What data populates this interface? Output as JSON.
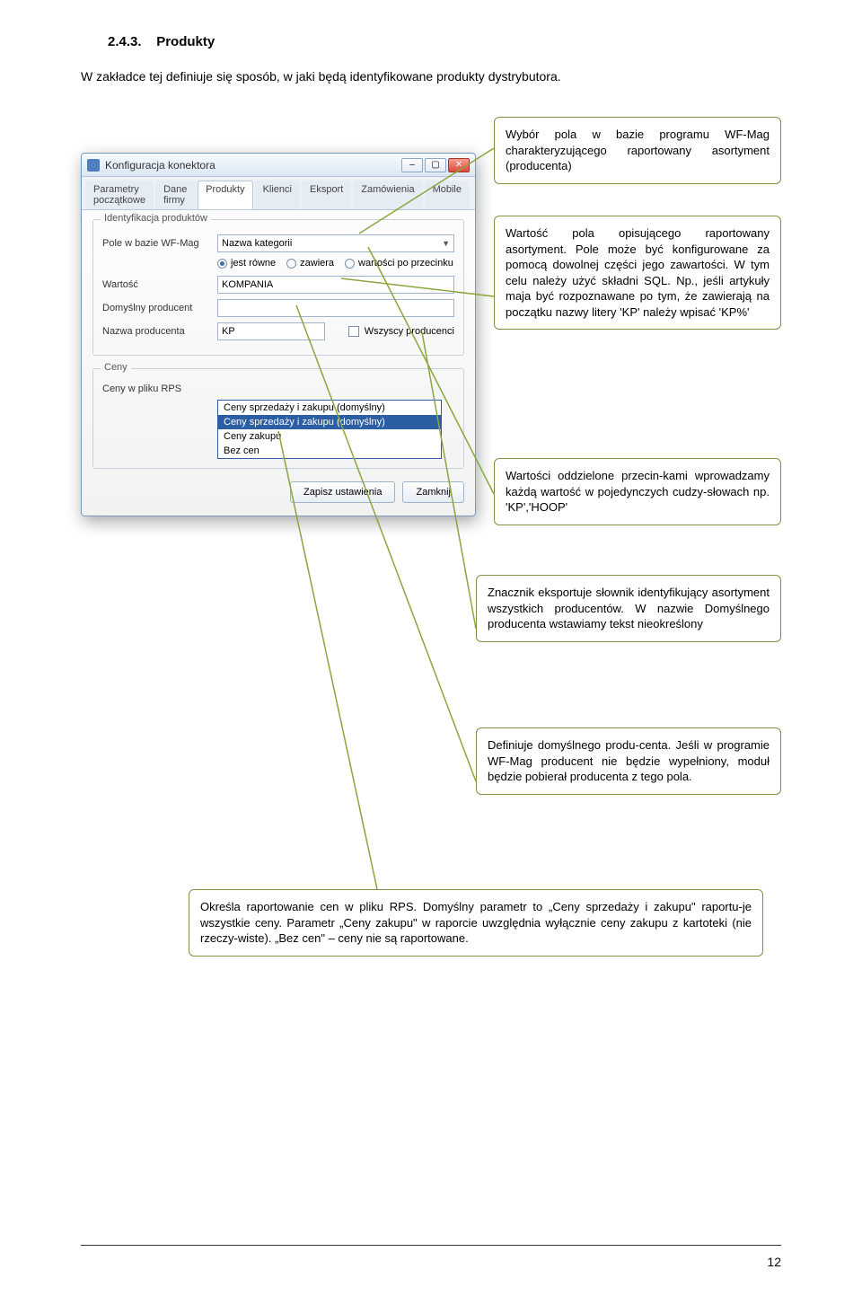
{
  "colors": {
    "callout_border": "#7c9340",
    "line": "#8aa63c",
    "dialog_border": "#7a9ac0",
    "selection_bg": "#2b5ea3"
  },
  "doc": {
    "section_number": "2.4.3.",
    "section_title": "Produkty",
    "intro": "W zakładce tej definiuje się sposób, w jaki będą identyfikowane produkty dystrybutora.",
    "page_number": "12"
  },
  "dialog": {
    "title": "Konfiguracja konektora",
    "tabs": [
      "Parametry początkowe",
      "Dane firmy",
      "Produkty",
      "Klienci",
      "Eksport",
      "Zamówienia",
      "Mobile"
    ],
    "active_tab_index": 2,
    "group_identyfikacja": {
      "legend": "Identyfikacja produktów",
      "pole_label": "Pole w bazie WF-Mag",
      "pole_value": "Nazwa kategorii",
      "radio_options": [
        "jest równe",
        "zawiera",
        "wartości po przecinku"
      ],
      "radio_selected_index": 0,
      "wartosc_label": "Wartość",
      "wartosc_value": "KOMPANIA",
      "domyslny_label": "Domyślny producent",
      "domyslny_value": "",
      "nazwa_label": "Nazwa producenta",
      "nazwa_value": "KP",
      "wszyscy_label": "Wszyscy producenci"
    },
    "group_ceny": {
      "legend": "Ceny",
      "ceny_label": "Ceny w pliku RPS",
      "options": [
        "Ceny sprzedaży i zakupu (domyślny)",
        "Ceny sprzedaży i zakupu (domyślny)",
        "Ceny zakupu",
        "Bez cen"
      ],
      "selected_index": 1
    },
    "btn_save": "Zapisz ustawienia",
    "btn_close": "Zamknij"
  },
  "callouts": {
    "c1": "Wybór pola w bazie programu WF-Mag charakteryzującego raportowany asortyment (producenta)",
    "c2": "Wartość pola opisującego raportowany asortyment. Pole może być konfigurowane za pomocą dowolnej części jego zawartości. W tym celu należy użyć składni SQL. Np., jeśli artykuły maja być rozpoznawane po tym, że zawierają na początku nazwy litery 'KP' należy wpisać 'KP%'",
    "c3": "Wartości oddzielone przecin-kami wprowadzamy każdą wartość w pojedynczych cudzy-słowach np. 'KP','HOOP'",
    "c4": "Znacznik eksportuje słownik identyfikujący asortyment wszystkich producentów. W nazwie Domyślnego producenta wstawiamy tekst nieokreślony",
    "c5": "Definiuje domyślnego produ-centa. Jeśli w programie WF-Mag producent nie będzie wypełniony, moduł będzie pobierał producenta z tego pola.",
    "c6": "Określa raportowanie cen w pliku RPS.\nDomyślny parametr to „Ceny sprzedaży i zakupu\" raportu-je wszystkie ceny. Parametr „Ceny zakupu\" w raporcie uwzględnia wyłącznie ceny zakupu z kartoteki (nie rzeczy-wiste). „Bez cen\" – ceny nie są raportowane."
  }
}
